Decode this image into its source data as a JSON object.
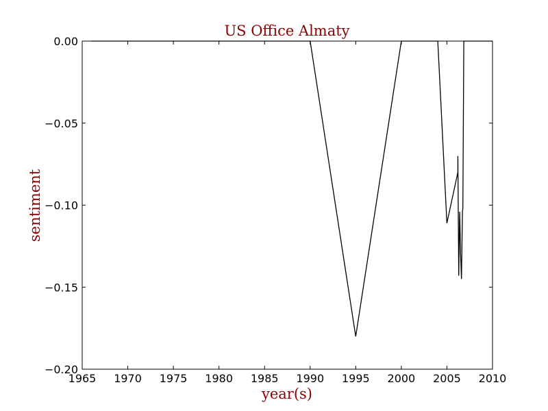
{
  "chart_data": {
    "type": "line",
    "title": "US Office Almaty",
    "xlabel": "year(s)",
    "ylabel": "sentiment",
    "xlim": [
      1965,
      2010
    ],
    "ylim": [
      -0.2,
      0.0
    ],
    "xticks": [
      1965,
      1970,
      1975,
      1980,
      1985,
      1990,
      1995,
      2000,
      2005,
      2010
    ],
    "xtick_labels": [
      "1965",
      "1970",
      "1975",
      "1980",
      "1985",
      "1990",
      "1995",
      "2000",
      "2005",
      "2010"
    ],
    "yticks": [
      0.0,
      -0.05,
      -0.1,
      -0.15,
      -0.2
    ],
    "ytick_labels": [
      "0.00",
      "−0.05",
      "−0.10",
      "−0.15",
      "−0.20"
    ],
    "grid": false,
    "legend": "none",
    "series": [
      {
        "color": "#000000",
        "x": [
          1966.0,
          1990.0,
          1995.0,
          2000.0,
          2004.0,
          2005.0,
          2006.2,
          2006.2,
          2006.3,
          2006.4,
          2006.5,
          2006.6,
          2006.7,
          2006.75,
          2006.85,
          2010.0
        ],
        "y": [
          0.0,
          0.0,
          -0.18,
          0.0,
          0.0,
          -0.111,
          -0.08,
          -0.07,
          -0.143,
          -0.104,
          -0.13,
          -0.145,
          -0.104,
          -0.102,
          0.0,
          0.0
        ]
      }
    ]
  }
}
